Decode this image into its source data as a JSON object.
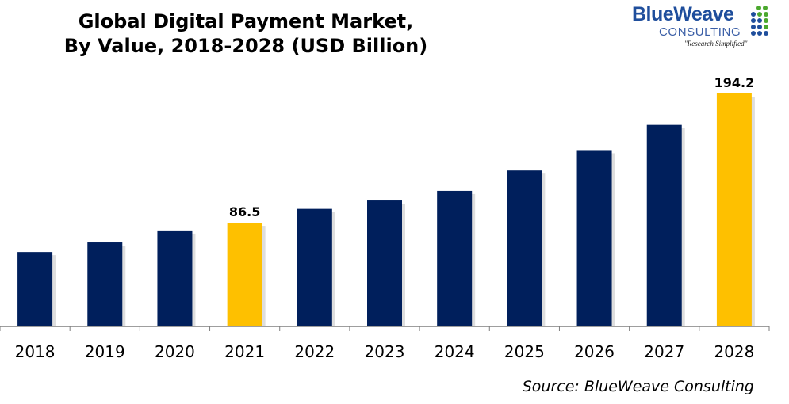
{
  "title_line1": "Global Digital Payment Market,",
  "title_line2": "By Value, 2018-2028 (USD Billion)",
  "logo": {
    "name_part1": "Blue",
    "name_part2": "Weave",
    "sub": "CONSULTING",
    "tagline": "\"Research Simplified\"",
    "colors": {
      "blue": "#1f4e9c",
      "green": "#4ba82e"
    }
  },
  "source": "Source: BlueWeave Consulting",
  "chart_data": {
    "type": "bar",
    "categories": [
      "2018",
      "2019",
      "2020",
      "2021",
      "2022",
      "2023",
      "2024",
      "2025",
      "2026",
      "2027",
      "2028"
    ],
    "values": [
      62,
      70,
      80,
      86.5,
      98,
      105,
      113,
      130,
      147,
      168,
      194.2
    ],
    "data_labels": {
      "3": "86.5",
      "10": "194.2"
    },
    "highlight": [
      3,
      10
    ],
    "colors": {
      "bar": "#001f5c",
      "highlight": "#fec000",
      "axis": "#7f7f7f"
    },
    "ylim": [
      0,
      200
    ],
    "grid": false,
    "legend": "none"
  }
}
